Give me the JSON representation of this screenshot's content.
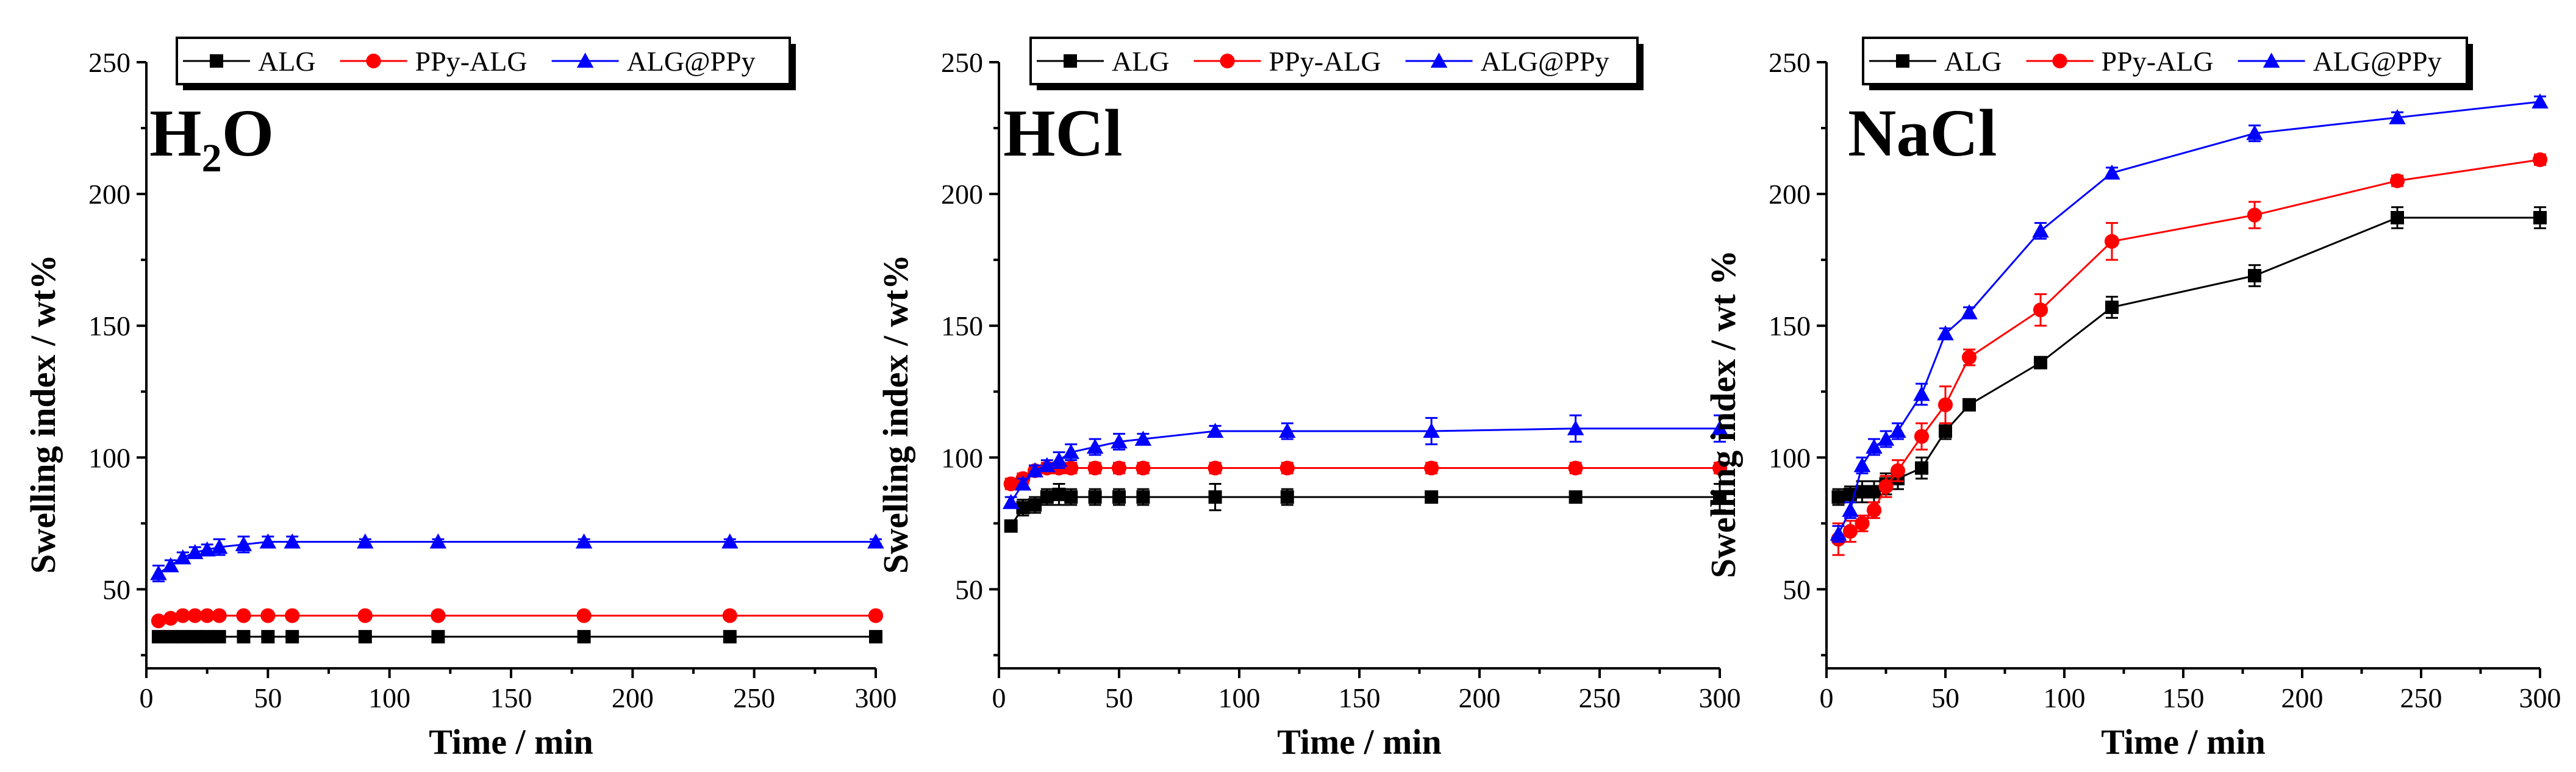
{
  "chart_data": [
    {
      "type": "line",
      "panel_label": "H2O",
      "panel_label_parts": [
        "H",
        "2",
        "O"
      ],
      "xlabel": "Time / min",
      "ylabel": "Swelling index / wt%",
      "xlim": [
        0,
        300
      ],
      "ylim": [
        20,
        250
      ],
      "xticks": [
        "0",
        "50",
        "100",
        "150",
        "200",
        "250",
        "300"
      ],
      "yticks": [
        "50",
        "100",
        "150",
        "200",
        "250"
      ],
      "legend_position": "top",
      "series": [
        {
          "name": "ALG",
          "color": "#000000",
          "marker": "square",
          "x": [
            5,
            10,
            15,
            20,
            25,
            30,
            40,
            50,
            60,
            90,
            120,
            180,
            240,
            300
          ],
          "y": [
            32,
            32,
            32,
            32,
            32,
            32,
            32,
            32,
            32,
            32,
            32,
            32,
            32,
            32
          ],
          "err": [
            1,
            1,
            1,
            1,
            1,
            1,
            1,
            1,
            1,
            1,
            1,
            1,
            1,
            1
          ]
        },
        {
          "name": "PPy-ALG",
          "color": "#ff0000",
          "marker": "circle",
          "x": [
            5,
            10,
            15,
            20,
            25,
            30,
            40,
            50,
            60,
            90,
            120,
            180,
            240,
            300
          ],
          "y": [
            38,
            39,
            40,
            40,
            40,
            40,
            40,
            40,
            40,
            40,
            40,
            40,
            40,
            40
          ],
          "err": [
            1,
            1,
            1,
            1,
            1,
            1,
            1,
            1,
            1,
            1,
            1,
            1,
            1,
            1
          ]
        },
        {
          "name": "ALG@PPy",
          "color": "#0000ff",
          "marker": "triangle",
          "x": [
            5,
            10,
            15,
            20,
            25,
            30,
            40,
            50,
            60,
            90,
            120,
            180,
            240,
            300
          ],
          "y": [
            56,
            59,
            62,
            64,
            65,
            66,
            67,
            68,
            68,
            68,
            68,
            68,
            68,
            68
          ],
          "err": [
            3,
            2,
            2,
            2,
            2,
            3,
            3,
            2,
            2,
            1,
            1,
            1,
            1,
            1
          ]
        }
      ]
    },
    {
      "type": "line",
      "panel_label": "HCl",
      "xlabel": "Time / min",
      "ylabel": "Swelling index / wt%",
      "xlim": [
        0,
        300
      ],
      "ylim": [
        20,
        250
      ],
      "xticks": [
        "0",
        "50",
        "100",
        "150",
        "200",
        "250",
        "300"
      ],
      "yticks": [
        "50",
        "100",
        "150",
        "200",
        "250"
      ],
      "legend_position": "top",
      "series": [
        {
          "name": "ALG",
          "color": "#000000",
          "marker": "square",
          "x": [
            5,
            10,
            15,
            20,
            25,
            30,
            40,
            50,
            60,
            90,
            120,
            180,
            240,
            300
          ],
          "y": [
            74,
            81,
            82,
            85,
            86,
            85,
            85,
            85,
            85,
            85,
            85,
            85,
            85,
            85
          ],
          "err": [
            2,
            3,
            3,
            3,
            4,
            3,
            3,
            3,
            3,
            5,
            3,
            2,
            2,
            5
          ]
        },
        {
          "name": "PPy-ALG",
          "color": "#ff0000",
          "marker": "circle",
          "x": [
            5,
            10,
            15,
            20,
            25,
            30,
            40,
            50,
            60,
            90,
            120,
            180,
            240,
            300
          ],
          "y": [
            90,
            92,
            95,
            96,
            96,
            96,
            96,
            96,
            96,
            96,
            96,
            96,
            96,
            96
          ],
          "err": [
            2,
            2,
            2,
            2,
            2,
            2,
            2,
            2,
            2,
            2,
            2,
            2,
            2,
            2
          ]
        },
        {
          "name": "ALG@PPy",
          "color": "#0000ff",
          "marker": "triangle",
          "x": [
            5,
            10,
            15,
            20,
            25,
            30,
            40,
            50,
            60,
            90,
            120,
            180,
            240,
            300
          ],
          "y": [
            83,
            90,
            95,
            97,
            99,
            102,
            104,
            106,
            107,
            110,
            110,
            110,
            111,
            111
          ],
          "err": [
            2,
            2,
            2,
            2,
            3,
            3,
            3,
            3,
            2,
            2,
            3,
            5,
            5,
            5
          ]
        }
      ]
    },
    {
      "type": "line",
      "panel_label": "NaCl",
      "xlabel": "Time / min",
      "ylabel": "Swelling index / wt %",
      "xlim": [
        0,
        300
      ],
      "ylim": [
        20,
        250
      ],
      "xticks": [
        "0",
        "50",
        "100",
        "150",
        "200",
        "250",
        "300"
      ],
      "yticks": [
        "50",
        "100",
        "150",
        "200",
        "250"
      ],
      "legend_position": "top",
      "series": [
        {
          "name": "ALG",
          "color": "#000000",
          "marker": "square",
          "x": [
            5,
            10,
            15,
            20,
            25,
            30,
            40,
            50,
            60,
            90,
            120,
            180,
            240,
            300
          ],
          "y": [
            85,
            86,
            87,
            87,
            90,
            92,
            96,
            110,
            120,
            136,
            157,
            169,
            191,
            191
          ],
          "err": [
            3,
            3,
            4,
            4,
            4,
            4,
            4,
            3,
            2,
            2,
            4,
            4,
            4,
            4
          ]
        },
        {
          "name": "PPy-ALG",
          "color": "#ff0000",
          "marker": "circle",
          "x": [
            5,
            10,
            15,
            20,
            25,
            30,
            40,
            50,
            60,
            90,
            120,
            180,
            240,
            300
          ],
          "y": [
            69,
            72,
            75,
            80,
            89,
            95,
            108,
            120,
            138,
            156,
            182,
            192,
            205,
            213
          ],
          "err": [
            6,
            4,
            3,
            3,
            4,
            4,
            5,
            7,
            3,
            6,
            7,
            5,
            2,
            2
          ]
        },
        {
          "name": "ALG@PPy",
          "color": "#0000ff",
          "marker": "triangle",
          "x": [
            5,
            10,
            15,
            20,
            25,
            30,
            40,
            50,
            60,
            90,
            120,
            180,
            240,
            300
          ],
          "y": [
            71,
            80,
            97,
            104,
            107,
            110,
            124,
            147,
            155,
            186,
            208,
            223,
            229,
            235
          ],
          "err": [
            3,
            3,
            3,
            3,
            3,
            3,
            4,
            2,
            2,
            3,
            2,
            3,
            2,
            2
          ]
        }
      ]
    }
  ]
}
